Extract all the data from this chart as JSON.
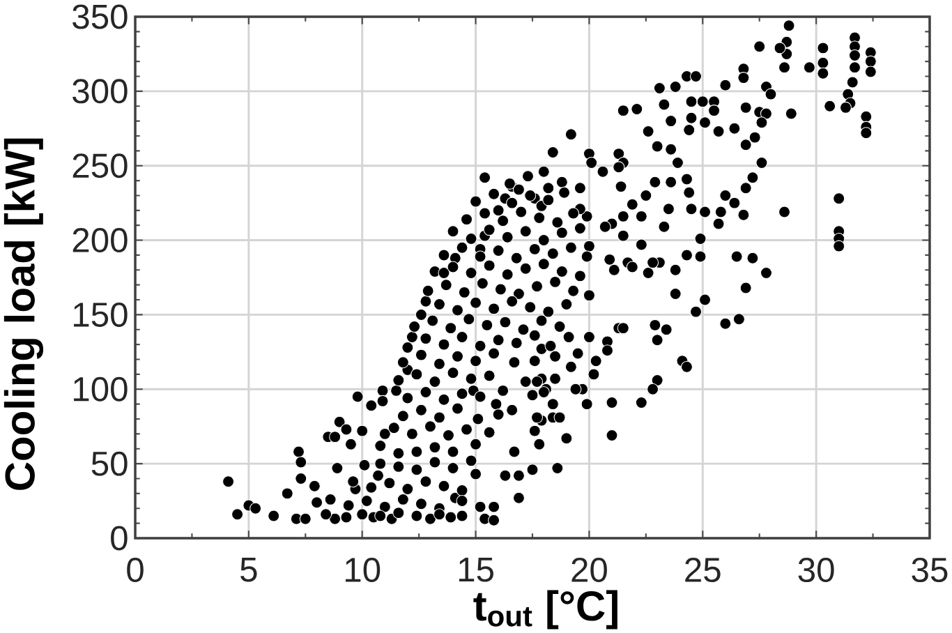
{
  "chart_data": {
    "type": "scatter",
    "xlabel": "t$_{out}$ [°C]",
    "ylabel": "Cooling load [kW]",
    "xlim": [
      0,
      35
    ],
    "ylim": [
      0,
      350
    ],
    "xticks": [
      0,
      5,
      10,
      15,
      20,
      25,
      30,
      35
    ],
    "yticks": [
      0,
      50,
      100,
      150,
      200,
      250,
      300,
      350
    ],
    "grid": true,
    "marker": "circle",
    "color": "#000000",
    "x": [
      4.1,
      4.5,
      5.0,
      5.3,
      6.1,
      6.7,
      7.2,
      7.3,
      7.3,
      7.1,
      7.5,
      7.9,
      8.0,
      8.5,
      8.8,
      9.0,
      9.3,
      9.5,
      9.8,
      10.0,
      10.4,
      10.9,
      10.9,
      11.5,
      11.0,
      8.9,
      8.8,
      9.3,
      9.7,
      10.1,
      10.7,
      10.5,
      11.3,
      11.6,
      12.0,
      12.2,
      12.6,
      12.8,
      13.2,
      12.4,
      13.0,
      13.9,
      14.1,
      15.0,
      15.2,
      15.4,
      15.8,
      15.8,
      16.3,
      16.7,
      16.9,
      16.9,
      17.5,
      17.8,
      16.7,
      17.2,
      17.6,
      17.9,
      18.1,
      17.9,
      16.6,
      15.9,
      15.1,
      14.9,
      23.8,
      27.8,
      26.9,
      23.8,
      25.1,
      24.7,
      26.0,
      26.6,
      22.9,
      23.4,
      23.0,
      24.1,
      24.3,
      23.0,
      22.8,
      21.0,
      22.3,
      21.0,
      18.6,
      19.0,
      18.4,
      18.7,
      19.9,
      20.2,
      20.3,
      20.0,
      20.8,
      20.8,
      21.3,
      21.5,
      19.2,
      19.7,
      17.9,
      18.5,
      17.7,
      18.3,
      18.5,
      19.1,
      19.5,
      17.5,
      18.0,
      18.4,
      19.4,
      17.7,
      17.6,
      28.8,
      28.7,
      28.7,
      28.6,
      28.4,
      27.5,
      29.7,
      30.3,
      30.3,
      30.3,
      31.7,
      31.7,
      31.7,
      31.7,
      32.4,
      32.4,
      32.4,
      31.6,
      31.4,
      31.5,
      31.3,
      30.6,
      32.2,
      32.2,
      32.2,
      28.9,
      31.0,
      31.0,
      31.0,
      31.0,
      28.6,
      27.8,
      28.0,
      26.8,
      26.8,
      26.0,
      24.3,
      24.7,
      23.1,
      23.8,
      23.3,
      21.5,
      22.1,
      23.6,
      19.2,
      18.4,
      18.0,
      24.5,
      25.0,
      25.5,
      25.5,
      24.5,
      26.9,
      27.5,
      27.8,
      27.6,
      24.4,
      25.1,
      25.7,
      26.4,
      27.3,
      26.9,
      27.6,
      27.2,
      26.9,
      26.0,
      26.4,
      26.8,
      25.8,
      25.7,
      26.5,
      27.2,
      24.9,
      24.9,
      24.3,
      23.1,
      22.6,
      21.7,
      21.1,
      20.0,
      20.1,
      21.3,
      21.5,
      22.6,
      23.0,
      23.6,
      23.9,
      22.9,
      23.6,
      24.3,
      24.4,
      24.5,
      25.1,
      21.9,
      22.3,
      21.5,
      21.0,
      19.9,
      18.8,
      17.6,
      19.6,
      18.2,
      19.6,
      20.7,
      21.5,
      22.3,
      22.8,
      21.9,
      20.9,
      20.0,
      23.3,
      23.5,
      22.5,
      21.4,
      20.6,
      21.3,
      15.4,
      16.6,
      16.9,
      16.3,
      16.0,
      17.9,
      14.1,
      13.6,
      15.4,
      15.2,
      16.5,
      17.3,
      15.0,
      15.8,
      16.6,
      17.4,
      18.2,
      18.9,
      14.6,
      15.4,
      16.2,
      17.0,
      17.8,
      18.6,
      19.3,
      14.0,
      14.8,
      15.6,
      16.4,
      17.2,
      18.0,
      18.8,
      19.6,
      13.6,
      14.4,
      15.2,
      16.0,
      16.8,
      17.6,
      18.4,
      19.2,
      19.9,
      14.0,
      14.8,
      15.6,
      16.4,
      17.2,
      18.0,
      18.8,
      19.6,
      12.9,
      13.7,
      14.5,
      15.3,
      16.1,
      16.9,
      17.7,
      18.5,
      19.3,
      20.0,
      13.4,
      14.2,
      15.0,
      15.8,
      16.6,
      17.4,
      18.2,
      19.0,
      12.3,
      13.1,
      13.9,
      14.7,
      15.5,
      16.3,
      17.1,
      17.9,
      18.7,
      12.0,
      12.8,
      13.6,
      14.4,
      15.2,
      16.0,
      16.8,
      17.6,
      11.8,
      12.6,
      13.4,
      14.2,
      15.0,
      15.8,
      11.6,
      12.4,
      13.2,
      14.0,
      14.8,
      15.6,
      12.0,
      12.8,
      13.6,
      14.4,
      15.2,
      16.2,
      11.8,
      12.6,
      13.4,
      14.2,
      16.0,
      11.4,
      12.2,
      13.0,
      13.8,
      14.6,
      15.6,
      10.8,
      11.6,
      13.2,
      14.0,
      15.0,
      10.8,
      12.4,
      13.2,
      14.0,
      14.8,
      9.6,
      10.4,
      11.2,
      12.0,
      12.8,
      13.6,
      14.4,
      8.6,
      9.4,
      10.2,
      11.0,
      11.8,
      12.6,
      13.4,
      14.4,
      8.4,
      10.0,
      10.8,
      11.6,
      12.4,
      13.4,
      14.4
    ],
    "values": [
      38,
      16,
      22,
      20,
      15,
      30,
      58,
      51,
      40,
      13,
      13,
      35,
      24,
      68,
      68,
      78,
      73,
      63,
      95,
      72,
      89,
      99,
      92,
      99,
      70,
      47,
      13,
      14,
      33,
      49,
      42,
      14,
      13,
      48,
      113,
      135,
      150,
      159,
      179,
      58,
      13,
      14,
      27,
      43,
      21,
      13,
      12,
      21,
      42,
      58,
      27,
      42,
      46,
      63,
      118,
      105,
      119,
      127,
      100,
      79,
      86,
      90,
      80,
      99,
      180,
      178,
      168,
      164,
      160,
      152,
      144,
      147,
      143,
      140,
      133,
      119,
      115,
      106,
      100,
      91,
      91,
      69,
      47,
      67,
      81,
      81,
      90,
      110,
      119,
      135,
      132,
      126,
      141,
      141,
      115,
      100,
      107,
      107,
      105,
      129,
      122,
      135,
      124,
      96,
      98,
      90,
      100,
      81,
      72,
      344,
      333,
      325,
      316,
      329,
      330,
      316,
      329,
      319,
      312,
      336,
      330,
      324,
      316,
      326,
      320,
      313,
      306,
      298,
      292,
      289,
      290,
      283,
      276,
      272,
      285,
      228,
      206,
      201,
      196,
      219,
      303,
      298,
      315,
      309,
      304,
      310,
      310,
      302,
      303,
      291,
      287,
      288,
      280,
      271,
      259,
      246,
      293,
      293,
      293,
      287,
      282,
      289,
      286,
      285,
      279,
      274,
      279,
      273,
      275,
      269,
      264,
      252,
      242,
      235,
      230,
      225,
      217,
      219,
      211,
      189,
      188,
      201,
      189,
      190,
      185,
      178,
      185,
      180,
      258,
      252,
      258,
      252,
      273,
      263,
      261,
      252,
      239,
      239,
      241,
      232,
      221,
      219,
      224,
      216,
      216,
      211,
      216,
      239,
      228,
      235,
      235,
      221,
      209,
      203,
      197,
      185,
      182,
      187,
      196,
      209,
      221,
      230,
      236,
      246,
      249,
      242,
      236,
      234,
      228,
      220,
      223,
      188,
      178,
      203,
      194,
      238,
      243,
      226,
      231,
      225,
      230,
      227,
      232,
      214,
      218,
      213,
      219,
      215,
      212,
      218,
      206,
      201,
      207,
      202,
      206,
      200,
      205,
      208,
      190,
      195,
      189,
      193,
      188,
      194,
      191,
      195,
      189,
      182,
      178,
      183,
      177,
      181,
      184,
      179,
      176,
      166,
      170,
      165,
      171,
      167,
      164,
      169,
      172,
      166,
      163,
      157,
      153,
      158,
      154,
      159,
      155,
      152,
      157,
      142,
      146,
      141,
      147,
      143,
      145,
      140,
      146,
      142,
      128,
      134,
      130,
      135,
      129,
      133,
      131,
      136,
      118,
      123,
      117,
      122,
      119,
      124,
      106,
      110,
      105,
      111,
      107,
      109,
      94,
      98,
      93,
      97,
      95,
      99,
      82,
      86,
      81,
      87,
      83,
      74,
      70,
      75,
      69,
      73,
      71,
      62,
      57,
      61,
      58,
      63,
      50,
      46,
      51,
      47,
      52,
      38,
      34,
      37,
      33,
      38,
      35,
      32,
      26,
      22,
      25,
      21,
      26,
      23,
      20,
      25,
      16,
      16,
      15,
      17,
      15,
      16,
      15
    ]
  }
}
